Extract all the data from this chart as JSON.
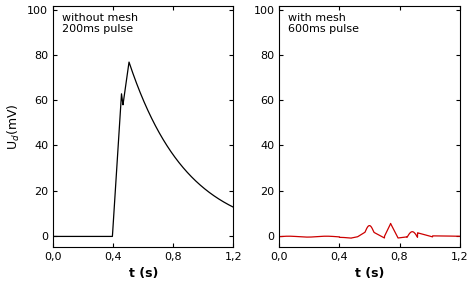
{
  "left_title_line1": "without mesh",
  "left_title_line2": "200ms pulse",
  "right_title_line1": "with mesh",
  "right_title_line2": "600ms pulse",
  "ylabel": "U$_d$(mV)",
  "xlabel": "t (s)",
  "ylim": [
    -5,
    102
  ],
  "xlim": [
    0,
    1.2
  ],
  "yticks": [
    0,
    20,
    40,
    60,
    80,
    100
  ],
  "xticks": [
    0.0,
    0.4,
    0.8,
    1.2
  ],
  "xtick_labels": [
    "0,0",
    "0,4",
    "0,8",
    "1,2"
  ],
  "ytick_labels": [
    "0",
    "20",
    "40",
    "60",
    "80",
    "100"
  ],
  "left_color": "#000000",
  "right_color": "#cc0000",
  "background_color": "#ffffff",
  "figsize": [
    4.74,
    2.86
  ],
  "dpi": 100
}
